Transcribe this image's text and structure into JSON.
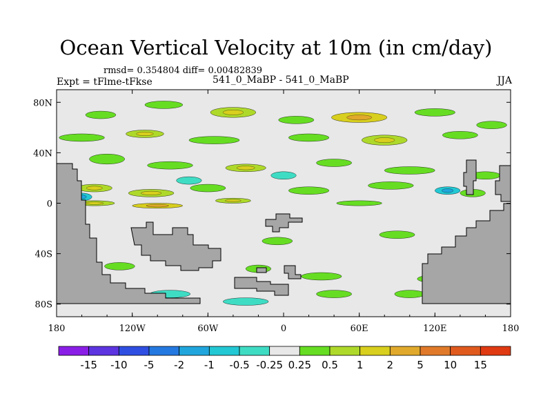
{
  "figure": {
    "title": "Ocean Vertical Velocity at 10m (in cm/day)",
    "stats": "rmsd= 0.354804 diff= 0.00482839",
    "left_label": "Expt = tFlme-tFkse",
    "center_label": "541_0_MaBP - 541_0_MaBP",
    "right_label": "JJA"
  },
  "chart_data": {
    "type": "heatmap",
    "title": "Ocean Vertical Velocity at 10m (in cm/day)",
    "xlabel": "",
    "ylabel": "",
    "xlim": [
      -180,
      180
    ],
    "ylim": [
      -90,
      90
    ],
    "x_ticks": [
      -180,
      -120,
      -60,
      0,
      60,
      120,
      180
    ],
    "x_tick_labels": [
      "180",
      "120W",
      "60W",
      "0",
      "60E",
      "120E",
      "180"
    ],
    "y_ticks": [
      80,
      40,
      0,
      -40,
      -80
    ],
    "y_tick_labels": [
      "80N",
      "40N",
      "0",
      "40S",
      "80S"
    ],
    "colorbar": {
      "levels": [
        "-15",
        "-10",
        "-5",
        "-2",
        "-1",
        "-0.5",
        "-0.25",
        "0.25",
        "0.5",
        "1",
        "2",
        "5",
        "10",
        "15"
      ],
      "colors": [
        "#8a1ee6",
        "#5c34e0",
        "#2f4fe2",
        "#2479e0",
        "#20a6dc",
        "#22c8d4",
        "#3fdcc4",
        "#e8e8e8",
        "#66dd22",
        "#aed92a",
        "#d8cf1e",
        "#e0a92c",
        "#e07a2a",
        "#e05a1e",
        "#e03a12"
      ]
    },
    "land_color": "#a6a6a6",
    "background_color": "#e8e8e8",
    "anomaly_patches": [
      {
        "lon": -145,
        "lat": 70,
        "rx": 12,
        "ry": 3,
        "level": 1
      },
      {
        "lon": -95,
        "lat": 78,
        "rx": 15,
        "ry": 3,
        "level": 1
      },
      {
        "lon": -40,
        "lat": 72,
        "rx": 18,
        "ry": 4,
        "level": 2
      },
      {
        "lon": 10,
        "lat": 66,
        "rx": 14,
        "ry": 3,
        "level": 1
      },
      {
        "lon": 60,
        "lat": 68,
        "rx": 22,
        "ry": 4,
        "level": 3
      },
      {
        "lon": 120,
        "lat": 72,
        "rx": 16,
        "ry": 3,
        "level": 1
      },
      {
        "lon": 165,
        "lat": 62,
        "rx": 12,
        "ry": 3,
        "level": 1
      },
      {
        "lon": -160,
        "lat": 52,
        "rx": 18,
        "ry": 3,
        "level": 1
      },
      {
        "lon": -110,
        "lat": 55,
        "rx": 15,
        "ry": 3,
        "level": 2
      },
      {
        "lon": -55,
        "lat": 50,
        "rx": 20,
        "ry": 3,
        "level": 1
      },
      {
        "lon": 20,
        "lat": 52,
        "rx": 16,
        "ry": 3,
        "level": 1
      },
      {
        "lon": 80,
        "lat": 50,
        "rx": 18,
        "ry": 4,
        "level": 2
      },
      {
        "lon": 140,
        "lat": 54,
        "rx": 14,
        "ry": 3,
        "level": 1
      },
      {
        "lon": -140,
        "lat": 35,
        "rx": 14,
        "ry": 4,
        "level": 1
      },
      {
        "lon": -90,
        "lat": 30,
        "rx": 18,
        "ry": 3,
        "level": 1
      },
      {
        "lon": -30,
        "lat": 28,
        "rx": 16,
        "ry": 3,
        "level": 2
      },
      {
        "lon": 40,
        "lat": 32,
        "rx": 14,
        "ry": 3,
        "level": 1
      },
      {
        "lon": 100,
        "lat": 26,
        "rx": 20,
        "ry": 3,
        "level": 1
      },
      {
        "lon": 160,
        "lat": 22,
        "rx": 12,
        "ry": 3,
        "level": 1
      },
      {
        "lon": -150,
        "lat": 12,
        "rx": 14,
        "ry": 3,
        "level": 2
      },
      {
        "lon": -105,
        "lat": 8,
        "rx": 18,
        "ry": 3,
        "level": 2
      },
      {
        "lon": -60,
        "lat": 12,
        "rx": 14,
        "ry": 3,
        "level": 1
      },
      {
        "lon": 20,
        "lat": 10,
        "rx": 16,
        "ry": 3,
        "level": 1
      },
      {
        "lon": 85,
        "lat": 14,
        "rx": 18,
        "ry": 3,
        "level": 1
      },
      {
        "lon": 150,
        "lat": 8,
        "rx": 10,
        "ry": 3,
        "level": 1
      },
      {
        "lon": -150,
        "lat": 0,
        "rx": 16,
        "ry": 2,
        "level": 2
      },
      {
        "lon": -100,
        "lat": -2,
        "rx": 20,
        "ry": 2,
        "level": 3
      },
      {
        "lon": -40,
        "lat": 2,
        "rx": 14,
        "ry": 2,
        "level": 2
      },
      {
        "lon": 60,
        "lat": 0,
        "rx": 18,
        "ry": 2,
        "level": 1
      },
      {
        "lon": -160,
        "lat": 5,
        "rx": 8,
        "ry": 3,
        "level": -2
      },
      {
        "lon": -75,
        "lat": 18,
        "rx": 10,
        "ry": 3,
        "level": -1
      },
      {
        "lon": 0,
        "lat": 22,
        "rx": 10,
        "ry": 3,
        "level": -1
      },
      {
        "lon": 130,
        "lat": 10,
        "rx": 10,
        "ry": 3,
        "level": -2
      },
      {
        "lon": -5,
        "lat": -30,
        "rx": 12,
        "ry": 3,
        "level": 1
      },
      {
        "lon": 90,
        "lat": -25,
        "rx": 14,
        "ry": 3,
        "level": 1
      },
      {
        "lon": -130,
        "lat": -50,
        "rx": 12,
        "ry": 3,
        "level": 1
      },
      {
        "lon": -20,
        "lat": -52,
        "rx": 10,
        "ry": 3,
        "level": 1
      },
      {
        "lon": 30,
        "lat": -58,
        "rx": 16,
        "ry": 3,
        "level": 1
      },
      {
        "lon": 120,
        "lat": -60,
        "rx": 14,
        "ry": 3,
        "level": 1
      },
      {
        "lon": -90,
        "lat": -72,
        "rx": 16,
        "ry": 3,
        "level": -1
      },
      {
        "lon": 40,
        "lat": -72,
        "rx": 14,
        "ry": 3,
        "level": 1
      },
      {
        "lon": 100,
        "lat": -72,
        "rx": 12,
        "ry": 3,
        "level": 1
      },
      {
        "lon": -30,
        "lat": -78,
        "rx": 18,
        "ry": 3,
        "level": -1
      }
    ]
  }
}
